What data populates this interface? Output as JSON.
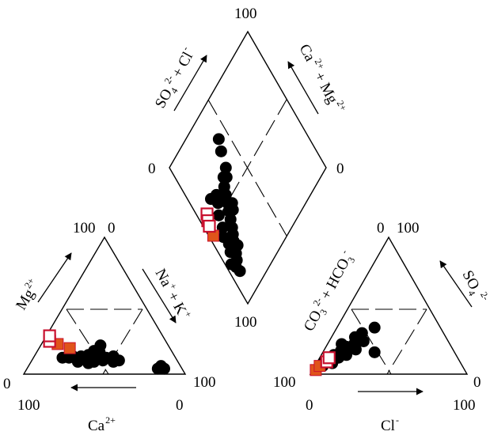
{
  "chart_data": {
    "type": "scatter",
    "variant": "piper-diagram",
    "colors": {
      "sample_marker": "#000000",
      "highlight_fill": "#e0541a",
      "highlight_outline": "#c8102e",
      "line": "#000000"
    },
    "cation_triangle": {
      "axes": {
        "mg": {
          "label": "Mg",
          "sup": "2+",
          "tick_labels": [
            "100",
            "0"
          ]
        },
        "na_k": {
          "label": "Na + K",
          "sup": "+ +"
        },
        "ca": {
          "label": "Ca",
          "sup": "2+",
          "tick_labels": [
            "100",
            "0"
          ]
        }
      },
      "corner_labels": [
        "100",
        "0",
        "0",
        "100",
        "100",
        "0"
      ],
      "points": [
        {
          "ca": 70,
          "mg": 12
        },
        {
          "ca": 66,
          "mg": 12
        },
        {
          "ca": 63,
          "mg": 13
        },
        {
          "ca": 60,
          "mg": 11
        },
        {
          "ca": 58,
          "mg": 13
        },
        {
          "ca": 55,
          "mg": 12
        },
        {
          "ca": 53,
          "mg": 14
        },
        {
          "ca": 50,
          "mg": 11
        },
        {
          "ca": 48,
          "mg": 13
        },
        {
          "ca": 46,
          "mg": 10
        },
        {
          "ca": 45,
          "mg": 16
        },
        {
          "ca": 43,
          "mg": 12
        },
        {
          "ca": 42,
          "mg": 21
        },
        {
          "ca": 40,
          "mg": 9
        },
        {
          "ca": 38,
          "mg": 13
        },
        {
          "ca": 36,
          "mg": 10
        },
        {
          "ca": 62,
          "mg": 9
        },
        {
          "ca": 56,
          "mg": 8
        },
        {
          "ca": 52,
          "mg": 9
        },
        {
          "ca": 48,
          "mg": 17
        },
        {
          "ca": 15,
          "mg": 4
        },
        {
          "ca": 13,
          "mg": 5
        },
        {
          "ca": 11,
          "mg": 4
        },
        {
          "ca": 12,
          "mg": 6
        }
      ],
      "highlighted_filled": [
        {
          "ca": 68,
          "mg": 22
        },
        {
          "ca": 62,
          "mg": 19
        }
      ],
      "highlighted_open": [
        {
          "ca": 72,
          "mg": 24
        },
        {
          "ca": 70,
          "mg": 28
        }
      ]
    },
    "anion_triangle": {
      "axes": {
        "so4": {
          "label": "SO",
          "sub": "4",
          "sup": "2-",
          "tick_labels": [
            "0",
            "100"
          ]
        },
        "co3_hco3": {
          "label": "CO + HCO",
          "sub": "3",
          "sup": "2-",
          "sup2": "-"
        },
        "cl": {
          "label": "Cl",
          "sup": "-",
          "tick_labels": [
            "0",
            "100"
          ]
        }
      },
      "corner_labels": [
        "0",
        "100",
        "100",
        "0",
        "0",
        "100"
      ],
      "points": [
        {
          "cl": 24,
          "so4": 34
        },
        {
          "cl": 22,
          "so4": 24
        },
        {
          "cl": 20,
          "so4": 18
        },
        {
          "cl": 17,
          "so4": 22
        },
        {
          "cl": 15,
          "so4": 27
        },
        {
          "cl": 13,
          "so4": 20
        },
        {
          "cl": 12,
          "so4": 12
        },
        {
          "cl": 11,
          "so4": 17
        },
        {
          "cl": 9,
          "so4": 22
        },
        {
          "cl": 8,
          "so4": 14
        },
        {
          "cl": 7,
          "so4": 9
        },
        {
          "cl": 6,
          "so4": 12
        },
        {
          "cl": 5,
          "so4": 6
        },
        {
          "cl": 18,
          "so4": 30
        },
        {
          "cl": 33,
          "so4": 16
        },
        {
          "cl": 16,
          "so4": 14
        },
        {
          "cl": 10,
          "so4": 8
        },
        {
          "cl": 4,
          "so4": 8
        }
      ],
      "highlighted_filled": [
        {
          "cl": 2,
          "so4": 3
        },
        {
          "cl": 3,
          "so4": 6
        }
      ],
      "highlighted_open": [
        {
          "cl": 6,
          "so4": 9
        },
        {
          "cl": 6,
          "so4": 12
        }
      ]
    },
    "diamond": {
      "axes": {
        "so4_cl": {
          "label": "SO + Cl",
          "sub": "4",
          "sup": "2-",
          "sup2": "-"
        },
        "ca_mg": {
          "label": "Ca + Mg",
          "sup": "2+",
          "sup2": "2+"
        }
      },
      "corner_labels": [
        "100",
        "0",
        "0",
        "100"
      ],
      "points": [
        {
          "u": 42,
          "v": 79
        },
        {
          "u": 39,
          "v": 73
        },
        {
          "u": 36,
          "v": 64
        },
        {
          "u": 33,
          "v": 60
        },
        {
          "u": 31,
          "v": 62
        },
        {
          "u": 28,
          "v": 58
        },
        {
          "u": 26,
          "v": 54
        },
        {
          "u": 24,
          "v": 50
        },
        {
          "u": 27,
          "v": 47
        },
        {
          "u": 25,
          "v": 44
        },
        {
          "u": 22,
          "v": 46
        },
        {
          "u": 20,
          "v": 42
        },
        {
          "u": 18,
          "v": 38
        },
        {
          "u": 16,
          "v": 35
        },
        {
          "u": 14,
          "v": 32
        },
        {
          "u": 12,
          "v": 29
        },
        {
          "u": 15,
          "v": 28
        },
        {
          "u": 11,
          "v": 26
        },
        {
          "u": 9,
          "v": 23
        },
        {
          "u": 7,
          "v": 17
        },
        {
          "u": 10,
          "v": 34
        },
        {
          "u": 6,
          "v": 21
        },
        {
          "u": 8,
          "v": 30
        },
        {
          "u": 4,
          "v": 25
        },
        {
          "u": 14,
          "v": 51
        },
        {
          "u": 18,
          "v": 56
        },
        {
          "u": 12,
          "v": 44
        },
        {
          "u": 9,
          "v": 40
        },
        {
          "u": 20,
          "v": 60
        },
        {
          "u": 15,
          "v": 62
        }
      ],
      "highlighted_filled": [
        {
          "u": 3,
          "v": 47
        }
      ],
      "highlighted_open": [
        {
          "u": 7,
          "v": 59
        },
        {
          "u": 5,
          "v": 56
        },
        {
          "u": 4,
          "v": 53
        }
      ]
    }
  }
}
